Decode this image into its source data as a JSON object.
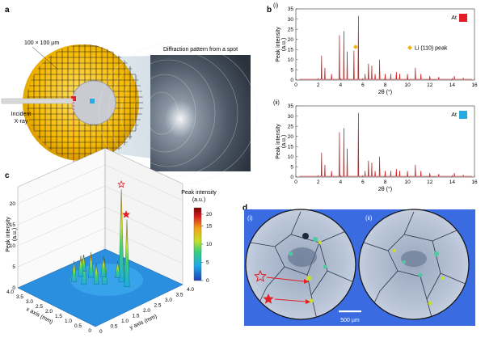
{
  "panels": {
    "a": {
      "label": "a",
      "grid_size": "100 × 100 µm",
      "diffraction_title": "Diffraction pattern from a spot",
      "incident_label_1": "Incident",
      "incident_label_2": "X-ray"
    },
    "b": {
      "label": "b",
      "plots": [
        {
          "roman": "(i)",
          "at_label": "At",
          "marker_color": "#e51e25",
          "li_label": "Li (110) peak",
          "ylabel_1": "Peak intensity",
          "ylabel_2": "(a.u.)",
          "xlabel": "2θ (°)",
          "yticks": [
            "0",
            "5",
            "10",
            "15",
            "20",
            "25",
            "30",
            "35"
          ],
          "xticks": [
            "0",
            "2",
            "4",
            "6",
            "8",
            "10",
            "12",
            "14",
            "16"
          ]
        },
        {
          "roman": "(ii)",
          "at_label": "At",
          "marker_color": "#29abe2",
          "ylabel_1": "Peak intensity",
          "ylabel_2": "(a.u.)",
          "xlabel": "2θ (°)",
          "yticks": [
            "0",
            "5",
            "10",
            "15",
            "20",
            "25",
            "30",
            "35"
          ],
          "xticks": [
            "0",
            "2",
            "4",
            "6",
            "8",
            "10",
            "12",
            "14",
            "16"
          ]
        }
      ]
    },
    "c": {
      "label": "c",
      "zlabel_1": "Peak intensity",
      "zlabel_2": "(a.u.)",
      "xlabel": "x axis (mm)",
      "ylabel": "y axis (mm)",
      "colorbar_title_1": "Peak intensity",
      "colorbar_title_2": "(a.u.)",
      "colorbar_ticks": [
        "20",
        "15",
        "10",
        "5",
        "0"
      ]
    },
    "d": {
      "label": "d",
      "left_roman": "(i)",
      "right_roman": "(ii)",
      "scale_bar": "500 µm"
    }
  },
  "chart_data": [
    {
      "type": "line",
      "title": "(i)",
      "xlabel": "2θ (°)",
      "ylabel": "Peak intensity (a.u.)",
      "xlim": [
        0,
        16
      ],
      "ylim": [
        0,
        35
      ],
      "peaks": [
        {
          "x": 2.3,
          "y": 12
        },
        {
          "x": 2.6,
          "y": 6
        },
        {
          "x": 3.2,
          "y": 3
        },
        {
          "x": 3.9,
          "y": 22
        },
        {
          "x": 4.3,
          "y": 24
        },
        {
          "x": 4.6,
          "y": 14
        },
        {
          "x": 5.2,
          "y": 14.5
        },
        {
          "x": 5.6,
          "y": 31.5
        },
        {
          "x": 6.2,
          "y": 3
        },
        {
          "x": 6.5,
          "y": 8
        },
        {
          "x": 6.8,
          "y": 7
        },
        {
          "x": 7.1,
          "y": 3
        },
        {
          "x": 7.5,
          "y": 10
        },
        {
          "x": 8.0,
          "y": 3
        },
        {
          "x": 8.5,
          "y": 3
        },
        {
          "x": 9.0,
          "y": 4
        },
        {
          "x": 9.3,
          "y": 3
        },
        {
          "x": 10.0,
          "y": 3
        },
        {
          "x": 10.7,
          "y": 6
        },
        {
          "x": 11.2,
          "y": 3
        },
        {
          "x": 12.0,
          "y": 2
        },
        {
          "x": 12.8,
          "y": 1.5
        },
        {
          "x": 14.2,
          "y": 2
        },
        {
          "x": 15.0,
          "y": 1
        }
      ],
      "annotation": {
        "x": 5.35,
        "y": 16.3,
        "label": "Li (110) peak"
      }
    },
    {
      "type": "line",
      "title": "(ii)",
      "xlabel": "2θ (°)",
      "ylabel": "Peak intensity (a.u.)",
      "xlim": [
        0,
        16
      ],
      "ylim": [
        0,
        35
      ],
      "peaks": [
        {
          "x": 2.3,
          "y": 12
        },
        {
          "x": 2.6,
          "y": 6
        },
        {
          "x": 3.2,
          "y": 3
        },
        {
          "x": 3.9,
          "y": 22
        },
        {
          "x": 4.3,
          "y": 24
        },
        {
          "x": 4.6,
          "y": 14
        },
        {
          "x": 5.6,
          "y": 31.5
        },
        {
          "x": 6.2,
          "y": 3
        },
        {
          "x": 6.5,
          "y": 8
        },
        {
          "x": 6.8,
          "y": 7
        },
        {
          "x": 7.1,
          "y": 3
        },
        {
          "x": 7.5,
          "y": 10
        },
        {
          "x": 8.0,
          "y": 3
        },
        {
          "x": 8.5,
          "y": 3
        },
        {
          "x": 9.0,
          "y": 4
        },
        {
          "x": 9.3,
          "y": 3
        },
        {
          "x": 10.0,
          "y": 3
        },
        {
          "x": 10.7,
          "y": 6
        },
        {
          "x": 11.2,
          "y": 3
        },
        {
          "x": 12.0,
          "y": 2
        },
        {
          "x": 12.8,
          "y": 1.5
        },
        {
          "x": 14.2,
          "y": 2
        },
        {
          "x": 15.0,
          "y": 1
        }
      ]
    },
    {
      "type": "heatmap",
      "title": "",
      "xlabel": "x axis (mm)",
      "ylabel": "y axis (mm)",
      "zlabel": "Peak intensity (a.u.)",
      "zlim": [
        0,
        20
      ],
      "x_ticks": [
        "0",
        "0.5",
        "1.0",
        "1.5",
        "2.0",
        "2.5",
        "3.0",
        "3.5",
        "4.0"
      ],
      "y_ticks": [
        "0",
        "0.5",
        "1.0",
        "1.5",
        "2.0",
        "2.5",
        "3.0",
        "3.5",
        "4.0"
      ],
      "z_ticks": [
        "0",
        "5",
        "10",
        "15",
        "20"
      ],
      "spikes": [
        {
          "x": 1.3,
          "y": 2.6,
          "z": 16
        },
        {
          "x": 1.7,
          "y": 2.7,
          "z": 22
        },
        {
          "x": 2.0,
          "y": 2.2,
          "z": 6
        },
        {
          "x": 2.2,
          "y": 2.0,
          "z": 5
        },
        {
          "x": 2.5,
          "y": 1.7,
          "z": 7
        },
        {
          "x": 2.9,
          "y": 1.6,
          "z": 5
        },
        {
          "x": 2.7,
          "y": 2.2,
          "z": 6
        },
        {
          "x": 3.0,
          "y": 2.0,
          "z": 5
        },
        {
          "x": 2.0,
          "y": 2.8,
          "z": 4
        },
        {
          "x": 2.4,
          "y": 2.5,
          "z": 5
        },
        {
          "x": 3.2,
          "y": 2.3,
          "z": 4
        }
      ]
    }
  ]
}
